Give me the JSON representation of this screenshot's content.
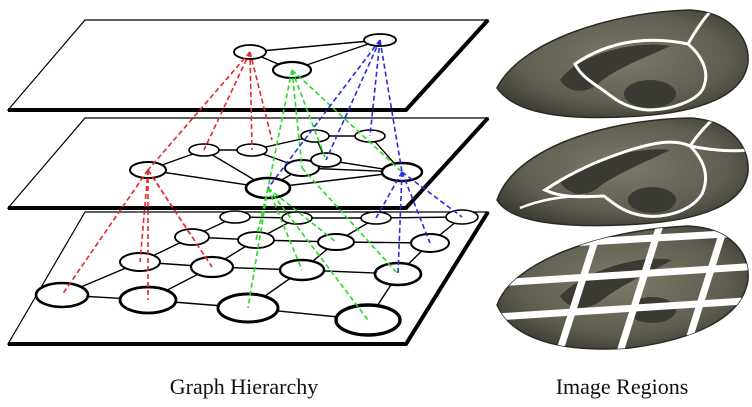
{
  "captions": {
    "left": "Graph Hierarchy",
    "right": "Image Regions"
  },
  "colors": {
    "red": "#e8262a",
    "green": "#22dd22",
    "blue": "#2a2ae0",
    "tissue": "#6c6a5a",
    "tissue_dark": "#3b3a32",
    "region_border": "#ffffff"
  }
}
